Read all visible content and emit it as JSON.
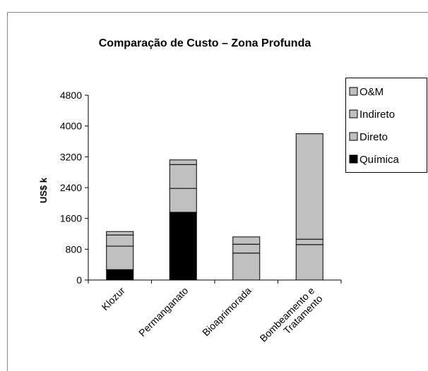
{
  "chart_data": {
    "type": "stacked_bar",
    "title": "Comparação de Custo – Zona Profunda",
    "y_label": "US$ k",
    "categories": [
      "Klozur",
      "Permanganato",
      "Bioaprimorada",
      "Bombeamento e Tratamento"
    ],
    "series": [
      {
        "name": "Química",
        "color": "#000000",
        "values": [
          270,
          1760,
          0,
          0
        ]
      },
      {
        "name": "Direto",
        "color": "#c0c0c0",
        "values": [
          610,
          620,
          700,
          920
        ]
      },
      {
        "name": "Indireto",
        "color": "#c0c0c0",
        "values": [
          290,
          620,
          230,
          140
        ]
      },
      {
        "name": "O&M",
        "color": "#c0c0c0",
        "values": [
          90,
          120,
          190,
          2740
        ]
      }
    ],
    "ylim": [
      0,
      4800
    ],
    "yticks": [
      0,
      800,
      1600,
      2400,
      3200,
      4000,
      4800
    ],
    "grid": false,
    "legend": "right"
  }
}
